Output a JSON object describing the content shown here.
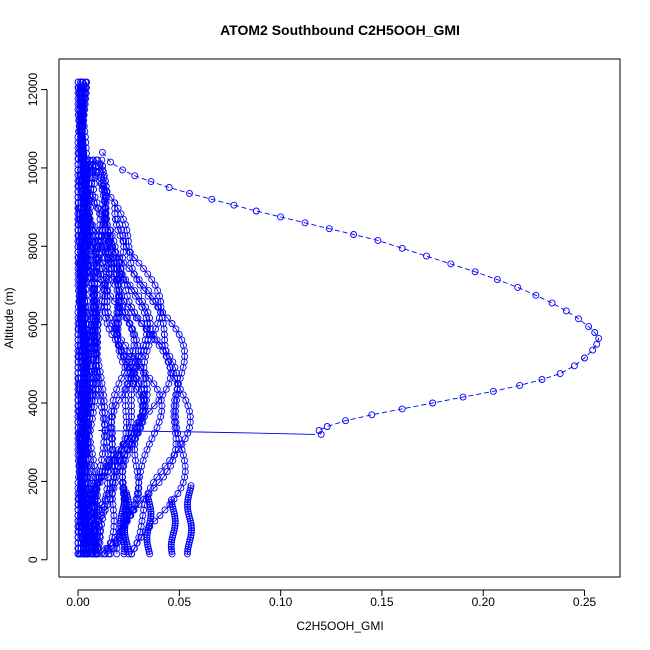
{
  "chart_data": {
    "type": "scatter",
    "title": "ATOM2 Southbound C2H5OOH_GMI",
    "xlabel": "C2H5OOH_GMI",
    "ylabel": "Altitude (m)",
    "xlim": [
      -0.0094,
      0.2675
    ],
    "ylim": [
      -440,
      12780
    ],
    "x_ticks": [
      0.0,
      0.05,
      0.1,
      0.15,
      0.2,
      0.25
    ],
    "x_tick_labels": [
      "0.00",
      "0.05",
      "0.10",
      "0.15",
      "0.20",
      "0.25"
    ],
    "y_ticks": [
      0,
      2000,
      4000,
      6000,
      8000,
      10000,
      12000
    ],
    "y_tick_labels": [
      "0",
      "2000",
      "4000",
      "6000",
      "8000",
      "10000",
      "12000"
    ],
    "grid": false,
    "marker": "open-circle",
    "color": "#0000FF",
    "series": [
      {
        "style": "dashed-line-with-markers",
        "x": [
          0.012,
          0.016,
          0.022,
          0.028,
          0.036,
          0.045,
          0.055,
          0.066,
          0.077,
          0.088,
          0.1,
          0.112,
          0.124,
          0.136,
          0.148,
          0.16,
          0.172,
          0.184,
          0.196,
          0.207,
          0.217,
          0.226,
          0.234,
          0.241,
          0.247,
          0.252,
          0.255,
          0.257,
          0.256,
          0.254,
          0.25,
          0.245,
          0.238,
          0.229,
          0.218,
          0.205,
          0.19,
          0.175,
          0.16,
          0.145,
          0.132,
          0.123,
          0.119,
          0.12
        ],
        "y": [
          10400,
          10150,
          9950,
          9800,
          9650,
          9500,
          9350,
          9200,
          9050,
          8900,
          8750,
          8600,
          8450,
          8300,
          8150,
          7950,
          7750,
          7550,
          7350,
          7150,
          6950,
          6750,
          6550,
          6350,
          6150,
          5950,
          5800,
          5650,
          5500,
          5350,
          5150,
          4950,
          4750,
          4600,
          4450,
          4300,
          4150,
          4000,
          3850,
          3700,
          3550,
          3400,
          3300,
          3200
        ]
      },
      {
        "style": "solid-line",
        "x": [
          0.01,
          0.03,
          0.06,
          0.09,
          0.117
        ],
        "y": [
          3300,
          3280,
          3260,
          3230,
          3200
        ]
      }
    ]
  }
}
